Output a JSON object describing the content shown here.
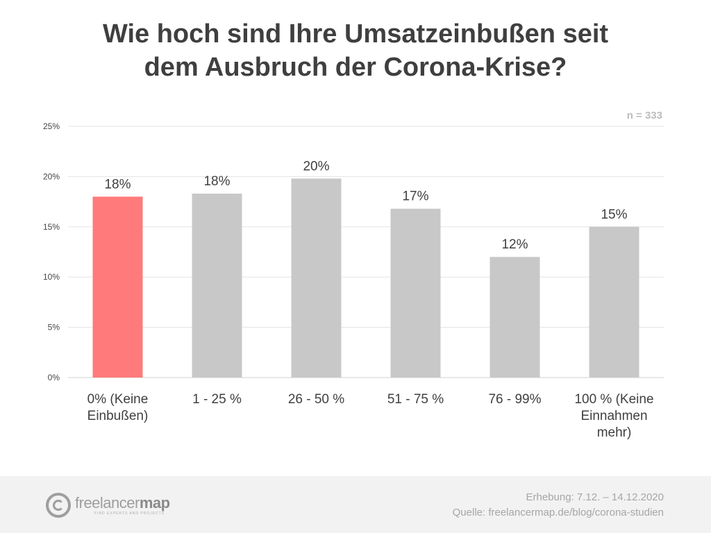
{
  "title": {
    "line1": "Wie hoch sind Ihre Umsatzeinbußen seit",
    "line2": "dem Ausbruch der Corona-Krise?"
  },
  "sample_size": "n = 333",
  "colors": {
    "highlight": "#ff7b7b",
    "bar": "#c8c8c8",
    "grid": "#e3e3e3",
    "axis_text": "#444444",
    "label_text": "#3f3f3f"
  },
  "chart_data": {
    "type": "bar",
    "title": "Wie hoch sind Ihre Umsatzeinbußen seit dem Ausbruch der Corona-Krise?",
    "xlabel": "",
    "ylabel": "",
    "categories": [
      [
        "0% (Keine",
        "Einbußen)"
      ],
      [
        "1 - 25 %"
      ],
      [
        "26 - 50 %"
      ],
      [
        "51 - 75 %"
      ],
      [
        "76 - 99%"
      ],
      [
        "100 % (Keine",
        "Einnahmen",
        "mehr)"
      ]
    ],
    "values": [
      18,
      18.3,
      19.8,
      16.8,
      12,
      15
    ],
    "data_labels": [
      "18%",
      "18%",
      "20%",
      "17%",
      "12%",
      "15%"
    ],
    "highlight_index": 0,
    "ylim": [
      0,
      25
    ],
    "yticks": [
      0,
      5,
      10,
      15,
      20,
      25
    ],
    "ytick_labels": [
      "0%",
      "5%",
      "10%",
      "15%",
      "20%",
      "25%"
    ],
    "grid": true,
    "legend": "none"
  },
  "footer": {
    "logo_word_light": "freelancer",
    "logo_word_bold": "map",
    "logo_tagline": "FIND EXPERTS AND PROJECTS",
    "survey_period": "Erhebung: 7.12. – 14.12.2020",
    "source": "Quelle: freelancermap.de/blog/corona-studien"
  }
}
